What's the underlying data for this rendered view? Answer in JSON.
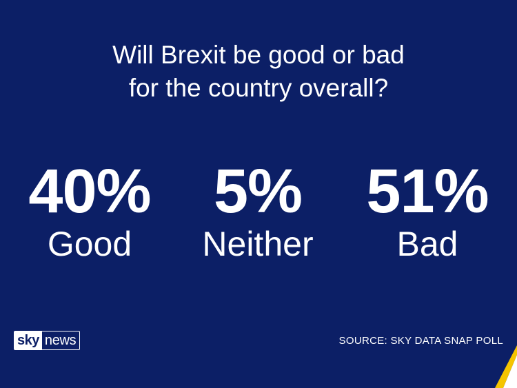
{
  "chart_data": {
    "type": "table",
    "title_lines": [
      "Will Brexit be good or bad",
      "for the country overall?"
    ],
    "categories": [
      "Good",
      "Neither",
      "Bad"
    ],
    "values": [
      40,
      5,
      51
    ],
    "value_labels": [
      "40%",
      "5%",
      "51%"
    ]
  },
  "branding": {
    "logo_sky": "sky",
    "logo_news": "news",
    "source": "SOURCE: SKY DATA SNAP POLL"
  },
  "colors": {
    "background": "#0c1f66",
    "text": "#ffffff",
    "accent": "#f5c400"
  }
}
